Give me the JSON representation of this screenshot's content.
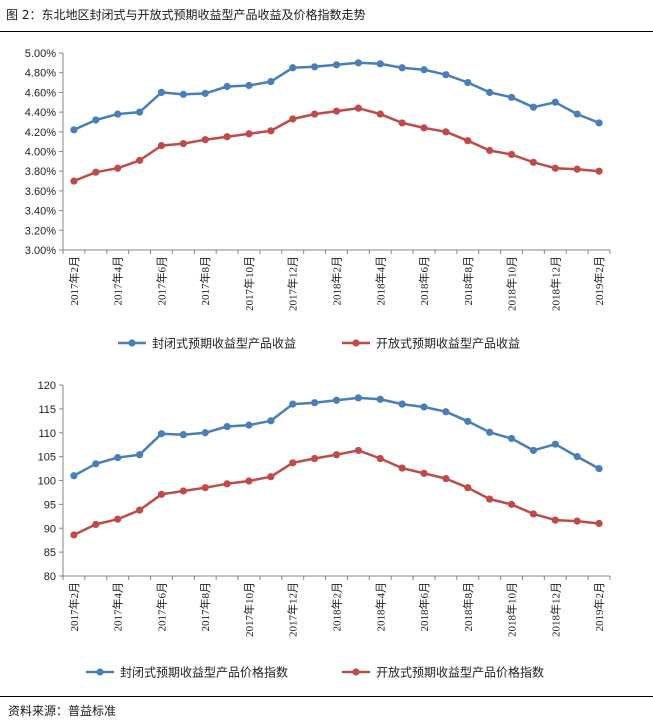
{
  "figure": {
    "title": "图 2：东北地区封闭式与开放式预期收益型产品收益及价格指数走势",
    "source": "资料来源：普益标准"
  },
  "colors": {
    "closed": "#4A7EBB",
    "open": "#BE4B48",
    "axis": "#868686"
  },
  "chart_data": [
    {
      "type": "line",
      "title": "",
      "categories": [
        "2017年2月",
        "2017年3月",
        "2017年4月",
        "2017年5月",
        "2017年6月",
        "2017年7月",
        "2017年8月",
        "2017年9月",
        "2017年10月",
        "2017年11月",
        "2017年12月",
        "2018年1月",
        "2018年2月",
        "2018年3月",
        "2018年4月",
        "2018年5月",
        "2018年6月",
        "2018年7月",
        "2018年8月",
        "2018年9月",
        "2018年10月",
        "2018年11月",
        "2018年12月",
        "2019年1月",
        "2019年2月"
      ],
      "xtick_labels": [
        "2017年2月",
        "",
        "2017年4月",
        "",
        "2017年6月",
        "",
        "2017年8月",
        "",
        "2017年10月",
        "",
        "2017年12月",
        "",
        "2018年2月",
        "",
        "2018年4月",
        "",
        "2018年6月",
        "",
        "2018年8月",
        "",
        "2018年10月",
        "",
        "2018年12月",
        "",
        "2019年2月"
      ],
      "ylim": [
        3.0,
        5.0
      ],
      "yticks": [
        3.0,
        3.2,
        3.4,
        3.6,
        3.8,
        4.0,
        4.2,
        4.4,
        4.6,
        4.8,
        5.0
      ],
      "ytick_labels": [
        "3.00%",
        "3.20%",
        "3.40%",
        "3.60%",
        "3.80%",
        "4.00%",
        "4.20%",
        "4.40%",
        "4.60%",
        "4.80%",
        "5.00%"
      ],
      "series": [
        {
          "name": "封闭式预期收益型产品收益",
          "color": "#4A7EBB",
          "values": [
            4.22,
            4.32,
            4.38,
            4.4,
            4.6,
            4.58,
            4.59,
            4.66,
            4.67,
            4.71,
            4.85,
            4.86,
            4.88,
            4.9,
            4.89,
            4.85,
            4.83,
            4.78,
            4.7,
            4.6,
            4.55,
            4.45,
            4.5,
            4.38,
            4.29
          ]
        },
        {
          "name": "开放式预期收益型产品收益",
          "color": "#BE4B48",
          "values": [
            3.7,
            3.79,
            3.83,
            3.91,
            4.06,
            4.08,
            4.12,
            4.15,
            4.18,
            4.21,
            4.33,
            4.38,
            4.41,
            4.44,
            4.38,
            4.29,
            4.24,
            4.2,
            4.11,
            4.01,
            3.97,
            3.89,
            3.83,
            3.82,
            3.8
          ]
        }
      ],
      "legend": [
        "封闭式预期收益型产品收益",
        "开放式预期收益型产品收益"
      ]
    },
    {
      "type": "line",
      "title": "",
      "categories": [
        "2017年2月",
        "2017年3月",
        "2017年4月",
        "2017年5月",
        "2017年6月",
        "2017年7月",
        "2017年8月",
        "2017年9月",
        "2017年10月",
        "2017年11月",
        "2017年12月",
        "2018年1月",
        "2018年2月",
        "2018年3月",
        "2018年4月",
        "2018年5月",
        "2018年6月",
        "2018年7月",
        "2018年8月",
        "2018年9月",
        "2018年10月",
        "2018年11月",
        "2018年12月",
        "2019年1月",
        "2019年2月"
      ],
      "xtick_labels": [
        "2017年2月",
        "",
        "2017年4月",
        "",
        "2017年6月",
        "",
        "2017年8月",
        "",
        "2017年10月",
        "",
        "2017年12月",
        "",
        "2018年2月",
        "",
        "2018年4月",
        "",
        "2018年6月",
        "",
        "2018年8月",
        "",
        "2018年10月",
        "",
        "2018年12月",
        "",
        "2019年2月"
      ],
      "ylim": [
        80,
        120
      ],
      "yticks": [
        80,
        85,
        90,
        95,
        100,
        105,
        110,
        115,
        120
      ],
      "ytick_labels": [
        "80",
        "85",
        "90",
        "95",
        "100",
        "105",
        "110",
        "115",
        "120"
      ],
      "series": [
        {
          "name": "封闭式预期收益型产品价格指数",
          "color": "#4A7EBB",
          "values": [
            101.0,
            103.5,
            104.8,
            105.4,
            109.8,
            109.6,
            110.0,
            111.3,
            111.6,
            112.5,
            116.0,
            116.3,
            116.8,
            117.3,
            117.0,
            116.0,
            115.4,
            114.4,
            112.4,
            110.1,
            108.8,
            106.3,
            107.6,
            105.0,
            102.5
          ]
        },
        {
          "name": "开放式预期收益型产品价格指数",
          "color": "#BE4B48",
          "values": [
            88.6,
            90.8,
            91.9,
            93.8,
            97.1,
            97.8,
            98.5,
            99.3,
            99.9,
            100.8,
            103.7,
            104.6,
            105.4,
            106.3,
            104.6,
            102.6,
            101.5,
            100.4,
            98.5,
            96.1,
            95.0,
            93.0,
            91.7,
            91.5,
            91.0
          ]
        }
      ],
      "legend": [
        "封闭式预期收益型产品价格指数",
        "开放式预期收益型产品价格指数"
      ]
    }
  ]
}
